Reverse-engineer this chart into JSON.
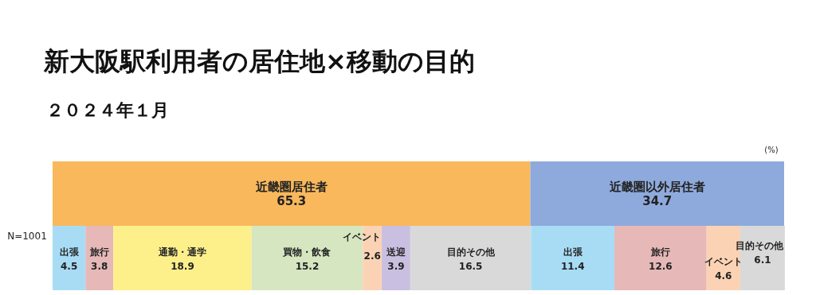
{
  "chart_data": {
    "type": "bar",
    "title": "新大阪駅利用者の居住地×移動の目的",
    "subtitle": "２０２４年１月",
    "orientation": "horizontal",
    "stacked": true,
    "categories": [
      null,
      null
    ],
    "xlim": [
      0,
      100
    ],
    "data_labels": true,
    "annotations": [
      "N=1001",
      "(%)"
    ],
    "series": [
      {
        "name": "近畿圏居住者",
        "color": "#f9b85c",
        "values": [
          65.3,
          null
        ]
      },
      {
        "name": "近畿圏以外居住者",
        "color": "#8eaadc",
        "values": [
          34.7,
          null
        ]
      },
      {
        "name": "出張",
        "color": "#a8dcf5",
        "values": [
          null,
          4.5
        ]
      },
      {
        "name": "旅行",
        "color": "#e6b8b8",
        "values": [
          null,
          3.8
        ]
      },
      {
        "name": "通勤・通学",
        "color": "#fdf08a",
        "values": [
          null,
          18.9
        ]
      },
      {
        "name": "買物・飲食",
        "color": "#d5e6c0",
        "values": [
          null,
          15.2
        ]
      },
      {
        "name": "イベント",
        "color": "#fbd3b4",
        "values": [
          null,
          2.6
        ]
      },
      {
        "name": "送迎",
        "color": "#c9bfe0",
        "values": [
          null,
          3.9
        ]
      },
      {
        "name": "目的その他",
        "color": "#d9d9d9",
        "values": [
          null,
          16.5
        ]
      },
      {
        "name": "出張",
        "color": "#a8dcf5",
        "values": [
          null,
          11.4
        ]
      },
      {
        "name": "旅行",
        "color": "#e6b8b8",
        "values": [
          null,
          12.6
        ]
      },
      {
        "name": "イベント",
        "color": "#fbd3b4",
        "values": [
          null,
          4.6
        ]
      },
      {
        "name": "目的その他",
        "color": "#d9d9d9",
        "values": [
          null,
          6.1
        ]
      }
    ]
  }
}
